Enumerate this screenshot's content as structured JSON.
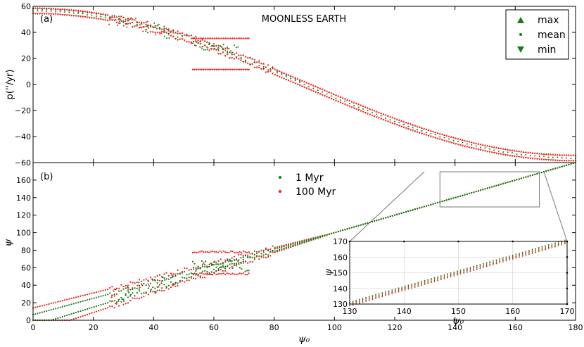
{
  "chart_data": [
    {
      "panel": "a",
      "type": "scatter",
      "panel_label": "(a)",
      "title": "MOONLESS EARTH",
      "ylabel": "p(''/yr)",
      "xlabel": "",
      "xlim": [
        0,
        180
      ],
      "ylim": [
        -60,
        60
      ],
      "yticks": [
        -60,
        -40,
        -20,
        0,
        20,
        40,
        60
      ],
      "ytick_labels": [
        "−60",
        "−40",
        "−20",
        "0",
        "20",
        "40",
        "60"
      ],
      "legend": {
        "position": "top-right",
        "entries": [
          "max",
          "mean",
          "min"
        ]
      },
      "model": {
        "amplitude": 56.5,
        "spread": 2.2,
        "chaotic_range": [
          25,
          80
        ]
      },
      "series": [
        {
          "name": "max",
          "marker": "triangle-up",
          "color": "#1a7a1a"
        },
        {
          "name": "mean",
          "marker": "dot",
          "color": "#1a7a1a"
        },
        {
          "name": "min",
          "marker": "triangle-down",
          "color": "#1a7a1a"
        }
      ],
      "chaotic_samples": [
        {
          "x": 55,
          "max": 35,
          "mean": 30,
          "min": 12
        },
        {
          "x": 60,
          "max": 35,
          "mean": 28,
          "min": 12
        },
        {
          "x": 65,
          "max": 36,
          "mean": 27,
          "min": 12
        },
        {
          "x": 70,
          "max": 36,
          "mean": 23,
          "min": 11
        }
      ]
    },
    {
      "panel": "b",
      "type": "scatter",
      "panel_label": "(b)",
      "xlabel": "ψ₀",
      "ylabel": "ψ",
      "xlim": [
        0,
        180
      ],
      "ylim": [
        0,
        180
      ],
      "xticks": [
        0,
        20,
        40,
        60,
        80,
        100,
        120,
        140,
        160,
        180
      ],
      "xtick_labels": [
        "0",
        "20",
        "40",
        "60",
        "80",
        "100",
        "120",
        "140",
        "160",
        "180"
      ],
      "yticks": [
        0,
        20,
        40,
        60,
        80,
        100,
        120,
        140,
        160
      ],
      "ytick_labels": [
        "0",
        "20",
        "40",
        "60",
        "80",
        "100",
        "120",
        "140",
        "160"
      ],
      "legend": {
        "position": "top-center",
        "entries": [
          "1 Myr",
          "100 Myr"
        ]
      },
      "series": [
        {
          "name": "1 Myr",
          "color": "#1a7a1a"
        },
        {
          "name": "100 Myr",
          "color": "#e8201a"
        }
      ],
      "chaotic_samples": [
        {
          "x": 55,
          "max": 78,
          "min": 52
        },
        {
          "x": 60,
          "max": 78,
          "min": 53
        },
        {
          "x": 65,
          "max": 78,
          "min": 53
        },
        {
          "x": 70,
          "max": 78,
          "min": 53
        }
      ],
      "zoom_box": {
        "x_range": [
          130,
          170
        ],
        "y_range": [
          130,
          170
        ]
      }
    },
    {
      "panel": "inset",
      "type": "scatter",
      "xlabel": "ψ₀",
      "ylabel": "ψ",
      "xlim": [
        130,
        170
      ],
      "ylim": [
        130,
        170
      ],
      "xticks": [
        130,
        140,
        150,
        160,
        170
      ],
      "xtick_labels": [
        "130",
        "140",
        "150",
        "160",
        "170"
      ],
      "yticks": [
        130,
        140,
        150,
        160,
        170
      ],
      "ytick_labels": [
        "130",
        "140",
        "150",
        "160",
        "170"
      ],
      "grid": true
    }
  ]
}
